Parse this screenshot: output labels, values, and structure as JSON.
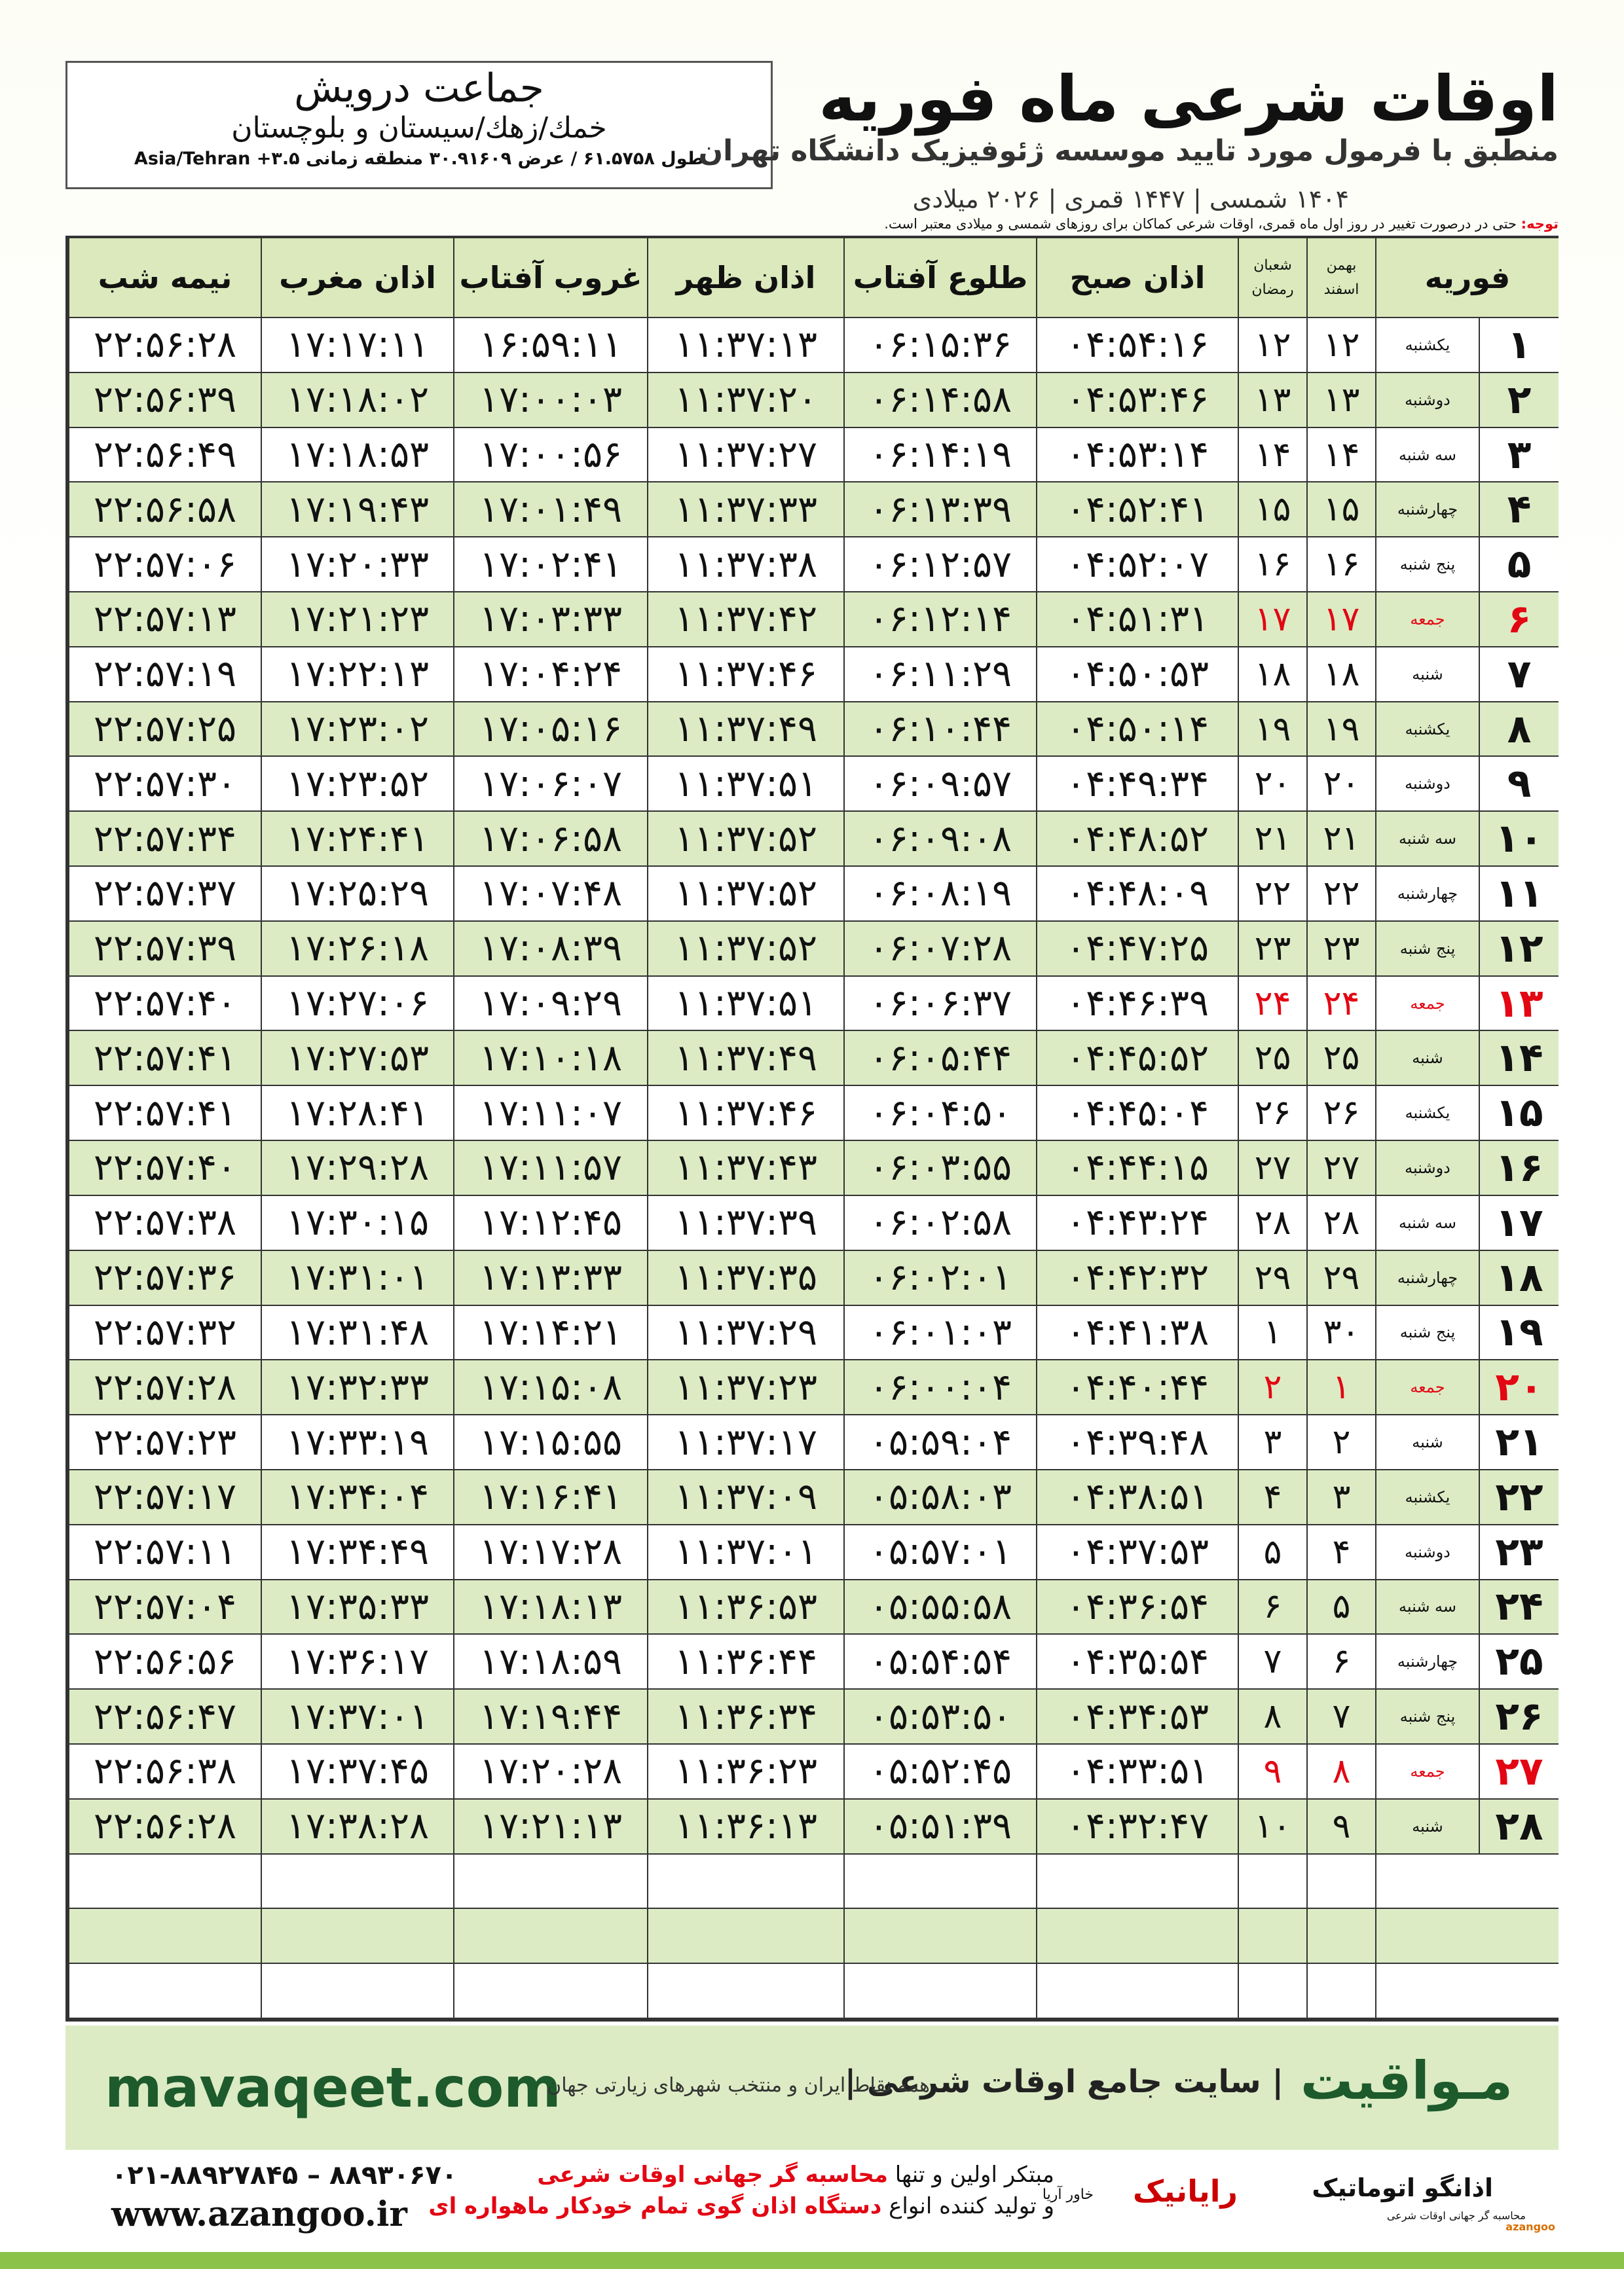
{
  "header": {
    "title": "اوقات شرعی ماه فوریه",
    "subtitle": "منطبق با فرمول مورد تایید موسسه ژئوفیزیک دانشگاه تهران",
    "years": "۱۴۰۴ شمسی | ۱۴۴۷ قمری | ۲۰۲۶ میلادی"
  },
  "location": {
    "name": "جماعت درویش",
    "region": "خمك/زهك/سیستان و بلوچستان",
    "coords": "طول ۶۱.۵۷۵۸ / عرض ۳۰.۹۱۶۰۹ منطقه زمانی Asia/Tehran +۳.۵"
  },
  "note": {
    "label": "توجه:",
    "text": "حتی در درصورت تغییر در روز اول ماه قمری، اوقات شرعی کماکان برای روزهای شمسی و میلادی معتبر است."
  },
  "table": {
    "columns": {
      "month": "فوریه",
      "shamsi": [
        "بهمن",
        "اسفند"
      ],
      "qamari": [
        "شعبان",
        "رمضان"
      ],
      "times": [
        "اذان صبح",
        "طلوع آفتاب",
        "اذان ظهر",
        "غروب آفتاب",
        "اذان مغرب",
        "نیمه شب"
      ]
    },
    "rows": [
      {
        "day": "۱",
        "weekday": "یکشنبه",
        "shamsi": "۱۲",
        "qamari": "۱۲",
        "times": [
          "۰۴:۵۴:۱۶",
          "۰۶:۱۵:۳۶",
          "۱۱:۳۷:۱۳",
          "۱۶:۵۹:۱۱",
          "۱۷:۱۷:۱۱",
          "۲۲:۵۶:۲۸"
        ]
      },
      {
        "day": "۲",
        "weekday": "دوشنبه",
        "shamsi": "۱۳",
        "qamari": "۱۳",
        "times": [
          "۰۴:۵۳:۴۶",
          "۰۶:۱۴:۵۸",
          "۱۱:۳۷:۲۰",
          "۱۷:۰۰:۰۳",
          "۱۷:۱۸:۰۲",
          "۲۲:۵۶:۳۹"
        ]
      },
      {
        "day": "۳",
        "weekday": "سه شنبه",
        "shamsi": "۱۴",
        "qamari": "۱۴",
        "times": [
          "۰۴:۵۳:۱۴",
          "۰۶:۱۴:۱۹",
          "۱۱:۳۷:۲۷",
          "۱۷:۰۰:۵۶",
          "۱۷:۱۸:۵۳",
          "۲۲:۵۶:۴۹"
        ]
      },
      {
        "day": "۴",
        "weekday": "چهارشنبه",
        "shamsi": "۱۵",
        "qamari": "۱۵",
        "times": [
          "۰۴:۵۲:۴۱",
          "۰۶:۱۳:۳۹",
          "۱۱:۳۷:۳۳",
          "۱۷:۰۱:۴۹",
          "۱۷:۱۹:۴۳",
          "۲۲:۵۶:۵۸"
        ]
      },
      {
        "day": "۵",
        "weekday": "پنج شنبه",
        "shamsi": "۱۶",
        "qamari": "۱۶",
        "times": [
          "۰۴:۵۲:۰۷",
          "۰۶:۱۲:۵۷",
          "۱۱:۳۷:۳۸",
          "۱۷:۰۲:۴۱",
          "۱۷:۲۰:۳۳",
          "۲۲:۵۷:۰۶"
        ]
      },
      {
        "day": "۶",
        "weekday": "جمعه",
        "shamsi": "۱۷",
        "qamari": "۱۷",
        "times": [
          "۰۴:۵۱:۳۱",
          "۰۶:۱۲:۱۴",
          "۱۱:۳۷:۴۲",
          "۱۷:۰۳:۳۳",
          "۱۷:۲۱:۲۳",
          "۲۲:۵۷:۱۳"
        ],
        "color": "#e30613"
      },
      {
        "day": "۷",
        "weekday": "شنبه",
        "shamsi": "۱۸",
        "qamari": "۱۸",
        "times": [
          "۰۴:۵۰:۵۳",
          "۰۶:۱۱:۲۹",
          "۱۱:۳۷:۴۶",
          "۱۷:۰۴:۲۴",
          "۱۷:۲۲:۱۳",
          "۲۲:۵۷:۱۹"
        ]
      },
      {
        "day": "۸",
        "weekday": "یکشنبه",
        "shamsi": "۱۹",
        "qamari": "۱۹",
        "times": [
          "۰۴:۵۰:۱۴",
          "۰۶:۱۰:۴۴",
          "۱۱:۳۷:۴۹",
          "۱۷:۰۵:۱۶",
          "۱۷:۲۳:۰۲",
          "۲۲:۵۷:۲۵"
        ]
      },
      {
        "day": "۹",
        "weekday": "دوشنبه",
        "shamsi": "۲۰",
        "qamari": "۲۰",
        "times": [
          "۰۴:۴۹:۳۴",
          "۰۶:۰۹:۵۷",
          "۱۱:۳۷:۵۱",
          "۱۷:۰۶:۰۷",
          "۱۷:۲۳:۵۲",
          "۲۲:۵۷:۳۰"
        ]
      },
      {
        "day": "۱۰",
        "weekday": "سه شنبه",
        "shamsi": "۲۱",
        "qamari": "۲۱",
        "times": [
          "۰۴:۴۸:۵۲",
          "۰۶:۰۹:۰۸",
          "۱۱:۳۷:۵۲",
          "۱۷:۰۶:۵۸",
          "۱۷:۲۴:۴۱",
          "۲۲:۵۷:۳۴"
        ]
      },
      {
        "day": "۱۱",
        "weekday": "چهارشنبه",
        "shamsi": "۲۲",
        "qamari": "۲۲",
        "times": [
          "۰۴:۴۸:۰۹",
          "۰۶:۰۸:۱۹",
          "۱۱:۳۷:۵۲",
          "۱۷:۰۷:۴۸",
          "۱۷:۲۵:۲۹",
          "۲۲:۵۷:۳۷"
        ]
      },
      {
        "day": "۱۲",
        "weekday": "پنج شنبه",
        "shamsi": "۲۳",
        "qamari": "۲۳",
        "times": [
          "۰۴:۴۷:۲۵",
          "۰۶:۰۷:۲۸",
          "۱۱:۳۷:۵۲",
          "۱۷:۰۸:۳۹",
          "۱۷:۲۶:۱۸",
          "۲۲:۵۷:۳۹"
        ]
      },
      {
        "day": "۱۳",
        "weekday": "جمعه",
        "shamsi": "۲۴",
        "qamari": "۲۴",
        "times": [
          "۰۴:۴۶:۳۹",
          "۰۶:۰۶:۳۷",
          "۱۱:۳۷:۵۱",
          "۱۷:۰۹:۲۹",
          "۱۷:۲۷:۰۶",
          "۲۲:۵۷:۴۰"
        ],
        "color": "#e30613"
      },
      {
        "day": "۱۴",
        "weekday": "شنبه",
        "shamsi": "۲۵",
        "qamari": "۲۵",
        "times": [
          "۰۴:۴۵:۵۲",
          "۰۶:۰۵:۴۴",
          "۱۱:۳۷:۴۹",
          "۱۷:۱۰:۱۸",
          "۱۷:۲۷:۵۳",
          "۲۲:۵۷:۴۱"
        ]
      },
      {
        "day": "۱۵",
        "weekday": "یکشنبه",
        "shamsi": "۲۶",
        "qamari": "۲۶",
        "times": [
          "۰۴:۴۵:۰۴",
          "۰۶:۰۴:۵۰",
          "۱۱:۳۷:۴۶",
          "۱۷:۱۱:۰۷",
          "۱۷:۲۸:۴۱",
          "۲۲:۵۷:۴۱"
        ]
      },
      {
        "day": "۱۶",
        "weekday": "دوشنبه",
        "shamsi": "۲۷",
        "qamari": "۲۷",
        "times": [
          "۰۴:۴۴:۱۵",
          "۰۶:۰۳:۵۵",
          "۱۱:۳۷:۴۳",
          "۱۷:۱۱:۵۷",
          "۱۷:۲۹:۲۸",
          "۲۲:۵۷:۴۰"
        ]
      },
      {
        "day": "۱۷",
        "weekday": "سه شنبه",
        "shamsi": "۲۸",
        "qamari": "۲۸",
        "times": [
          "۰۴:۴۳:۲۴",
          "۰۶:۰۲:۵۸",
          "۱۱:۳۷:۳۹",
          "۱۷:۱۲:۴۵",
          "۱۷:۳۰:۱۵",
          "۲۲:۵۷:۳۸"
        ]
      },
      {
        "day": "۱۸",
        "weekday": "چهارشنبه",
        "shamsi": "۲۹",
        "qamari": "۲۹",
        "times": [
          "۰۴:۴۲:۳۲",
          "۰۶:۰۲:۰۱",
          "۱۱:۳۷:۳۵",
          "۱۷:۱۳:۳۳",
          "۱۷:۳۱:۰۱",
          "۲۲:۵۷:۳۶"
        ]
      },
      {
        "day": "۱۹",
        "weekday": "پنج شنبه",
        "shamsi": "۳۰",
        "qamari": "۱",
        "times": [
          "۰۴:۴۱:۳۸",
          "۰۶:۰۱:۰۳",
          "۱۱:۳۷:۲۹",
          "۱۷:۱۴:۲۱",
          "۱۷:۳۱:۴۸",
          "۲۲:۵۷:۳۲"
        ]
      },
      {
        "day": "۲۰",
        "weekday": "جمعه",
        "shamsi": "۱",
        "qamari": "۲",
        "times": [
          "۰۴:۴۰:۴۴",
          "۰۶:۰۰:۰۴",
          "۱۱:۳۷:۲۳",
          "۱۷:۱۵:۰۸",
          "۱۷:۳۲:۳۳",
          "۲۲:۵۷:۲۸"
        ],
        "color": "#e30613"
      },
      {
        "day": "۲۱",
        "weekday": "شنبه",
        "shamsi": "۲",
        "qamari": "۳",
        "times": [
          "۰۴:۳۹:۴۸",
          "۰۵:۵۹:۰۴",
          "۱۱:۳۷:۱۷",
          "۱۷:۱۵:۵۵",
          "۱۷:۳۳:۱۹",
          "۲۲:۵۷:۲۳"
        ]
      },
      {
        "day": "۲۲",
        "weekday": "یکشنبه",
        "shamsi": "۳",
        "qamari": "۴",
        "times": [
          "۰۴:۳۸:۵۱",
          "۰۵:۵۸:۰۳",
          "۱۱:۳۷:۰۹",
          "۱۷:۱۶:۴۱",
          "۱۷:۳۴:۰۴",
          "۲۲:۵۷:۱۷"
        ]
      },
      {
        "day": "۲۳",
        "weekday": "دوشنبه",
        "shamsi": "۴",
        "qamari": "۵",
        "times": [
          "۰۴:۳۷:۵۳",
          "۰۵:۵۷:۰۱",
          "۱۱:۳۷:۰۱",
          "۱۷:۱۷:۲۸",
          "۱۷:۳۴:۴۹",
          "۲۲:۵۷:۱۱"
        ]
      },
      {
        "day": "۲۴",
        "weekday": "سه شنبه",
        "shamsi": "۵",
        "qamari": "۶",
        "times": [
          "۰۴:۳۶:۵۴",
          "۰۵:۵۵:۵۸",
          "۱۱:۳۶:۵۳",
          "۱۷:۱۸:۱۳",
          "۱۷:۳۵:۳۳",
          "۲۲:۵۷:۰۴"
        ]
      },
      {
        "day": "۲۵",
        "weekday": "چهارشنبه",
        "shamsi": "۶",
        "qamari": "۷",
        "times": [
          "۰۴:۳۵:۵۴",
          "۰۵:۵۴:۵۴",
          "۱۱:۳۶:۴۴",
          "۱۷:۱۸:۵۹",
          "۱۷:۳۶:۱۷",
          "۲۲:۵۶:۵۶"
        ]
      },
      {
        "day": "۲۶",
        "weekday": "پنج شنبه",
        "shamsi": "۷",
        "qamari": "۸",
        "times": [
          "۰۴:۳۴:۵۳",
          "۰۵:۵۳:۵۰",
          "۱۱:۳۶:۳۴",
          "۱۷:۱۹:۴۴",
          "۱۷:۳۷:۰۱",
          "۲۲:۵۶:۴۷"
        ]
      },
      {
        "day": "۲۷",
        "weekday": "جمعه",
        "shamsi": "۸",
        "qamari": "۹",
        "times": [
          "۰۴:۳۳:۵۱",
          "۰۵:۵۲:۴۵",
          "۱۱:۳۶:۲۳",
          "۱۷:۲۰:۲۸",
          "۱۷:۳۷:۴۵",
          "۲۲:۵۶:۳۸"
        ],
        "color": "#e30613"
      },
      {
        "day": "۲۸",
        "weekday": "شنبه",
        "shamsi": "۹",
        "qamari": "۱۰",
        "times": [
          "۰۴:۳۲:۴۷",
          "۰۵:۵۱:۳۹",
          "۱۱:۳۶:۱۳",
          "۱۷:۲۱:۱۳",
          "۱۷:۳۸:۲۸",
          "۲۲:۵۶:۲۸"
        ]
      }
    ]
  },
  "footer": {
    "url": "mavaqeet.com",
    "brand": "مـواقیت",
    "slogan": "| سایت جامع اوقات شرعی |",
    "tagline": "همه نقاط ایران و منتخب شهرهای زیارتی جهان"
  },
  "contact": {
    "phone": "۰۲۱-۸۸۹۲۷۸۴۵ – ۸۸۹۳۰۶۷۰",
    "web": "www.azangoo.ir",
    "line1": {
      "text": "مبتکر اولین و تنها ",
      "highlight": "محاسبه گر جهانی اوقات شرعی"
    },
    "line2": {
      "text": "و تولید کننده انواع ",
      "highlight": "دستگاه اذان گوی تمام خودکار ماهواره ای"
    }
  },
  "logos": {
    "azangoo": "اذانگو اتوماتیک",
    "azangoo_sub": "محاسبه گر جهانی اوقات شرعی",
    "azangoo_latin": "azangoo",
    "rayanik": "رایانیک",
    "khavar": "خاور آریا"
  }
}
